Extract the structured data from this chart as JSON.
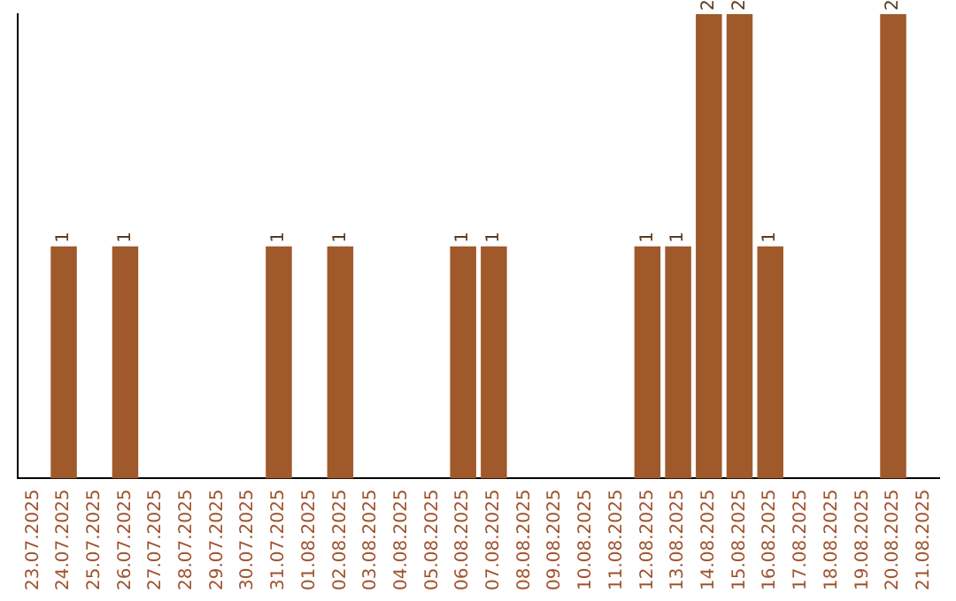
{
  "chart_data": {
    "type": "bar",
    "categories": [
      "23.07.2025",
      "24.07.2025",
      "25.07.2025",
      "26.07.2025",
      "27.07.2025",
      "28.07.2025",
      "29.07.2025",
      "30.07.2025",
      "31.07.2025",
      "01.08.2025",
      "02.08.2025",
      "03.08.2025",
      "04.08.2025",
      "05.08.2025",
      "06.08.2025",
      "07.08.2025",
      "08.08.2025",
      "09.08.2025",
      "10.08.2025",
      "11.08.2025",
      "12.08.2025",
      "13.08.2025",
      "14.08.2025",
      "15.08.2025",
      "16.08.2025",
      "17.08.2025",
      "18.08.2025",
      "19.08.2025",
      "20.08.2025",
      "21.08.2025"
    ],
    "values": [
      0,
      1,
      0,
      1,
      0,
      0,
      0,
      0,
      1,
      0,
      1,
      0,
      0,
      0,
      1,
      1,
      0,
      0,
      0,
      0,
      1,
      1,
      2,
      2,
      1,
      0,
      0,
      0,
      2,
      0
    ],
    "value_labels": [
      null,
      "1",
      null,
      "1",
      null,
      null,
      null,
      null,
      "1",
      null,
      "1",
      null,
      null,
      null,
      "1",
      "1",
      null,
      null,
      null,
      null,
      "1",
      "1",
      "2",
      "2",
      "1",
      null,
      null,
      null,
      "2",
      null
    ],
    "color": "#a0592b",
    "grid": false,
    "legend": false,
    "tick_labels": "x"
  }
}
